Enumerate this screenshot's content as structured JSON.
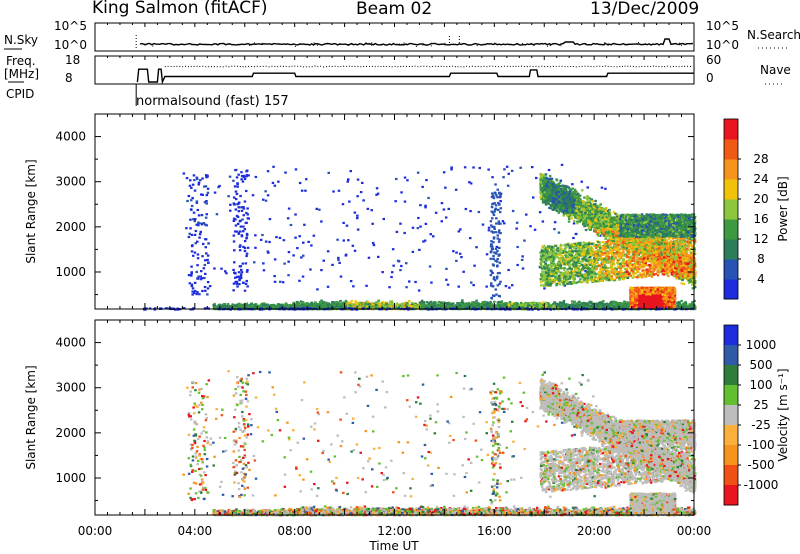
{
  "header": {
    "station": "King Salmon (fitACF)",
    "beam": "Beam 02",
    "date": "13/Dec/2009"
  },
  "status_panel": {
    "left_labels": [
      "N.Sky",
      "Freq.",
      "[MHz]",
      "CPID"
    ],
    "right_labels": [
      "N.Search",
      "Nave"
    ],
    "sky_ticks": [
      "10^5",
      "10^0"
    ],
    "search_ticks": [
      "10^5",
      "10^0"
    ],
    "freq_ticks": [
      "18",
      "8"
    ],
    "nave_ticks": [
      "60",
      "0"
    ],
    "cpid_label": "normalsound (fast) 157"
  },
  "colors": {
    "power_scale": [
      "#1e2ddc",
      "#2852b4",
      "#2e7d5a",
      "#3e9a40",
      "#8cc63e",
      "#f2c20a",
      "#f7941d",
      "#f05a14",
      "#e8141e"
    ],
    "velocity_scale": [
      "#1e2ddc",
      "#2e5aa8",
      "#2e7d3c",
      "#62c030",
      "#bdbdbd",
      "#fbb03b",
      "#f7941d",
      "#f05014",
      "#e8141e"
    ]
  },
  "chart_data": [
    {
      "type": "heatmap",
      "title": "",
      "xlabel": "",
      "ylabel": "Slant Range [km]",
      "x_ticks": [
        "00:00",
        "04:00",
        "08:00",
        "12:00",
        "16:00",
        "20:00",
        "00:00"
      ],
      "x_range_hours": [
        0,
        24
      ],
      "y_ticks": [
        1000,
        2000,
        3000,
        4000
      ],
      "ylim": [
        180,
        4500
      ],
      "colorbar": {
        "label": "Power [dB]",
        "ticks": [
          4,
          8,
          12,
          16,
          20,
          24,
          28
        ],
        "range": [
          0,
          30
        ]
      },
      "features": [
        {
          "region": "near-range band",
          "x_hours": [
            4.7,
            24
          ],
          "y_km": [
            180,
            450
          ],
          "level": "4-20 dB"
        },
        {
          "region": "backscatter arc",
          "x_hours": [
            18,
            24
          ],
          "y_km": [
            800,
            3000
          ],
          "level": "12-24 dB"
        },
        {
          "region": "strong patch",
          "x_hours": [
            21.5,
            23
          ],
          "y_km": [
            250,
            650
          ],
          "level": "28 dB"
        }
      ]
    },
    {
      "type": "heatmap",
      "title": "",
      "xlabel": "Time UT",
      "ylabel": "Slant Range [km]",
      "x_ticks": [
        "00:00",
        "04:00",
        "08:00",
        "12:00",
        "16:00",
        "20:00",
        "00:00"
      ],
      "x_range_hours": [
        0,
        24
      ],
      "y_ticks": [
        1000,
        2000,
        3000,
        4000
      ],
      "ylim": [
        180,
        4500
      ],
      "colorbar": {
        "label": "Velocity [m s⁻¹]",
        "ticks": [
          1000,
          500,
          100,
          25,
          -25,
          -100,
          -500,
          -1000
        ]
      },
      "features": [
        {
          "region": "near-range band",
          "x_hours": [
            4.7,
            24
          ],
          "y_km": [
            180,
            450
          ],
          "level": "mixed -100 to 100 m/s"
        },
        {
          "region": "ground scatter arc",
          "x_hours": [
            18,
            24
          ],
          "y_km": [
            300,
            3000
          ],
          "level": "-25 to 25 m/s"
        }
      ]
    }
  ]
}
